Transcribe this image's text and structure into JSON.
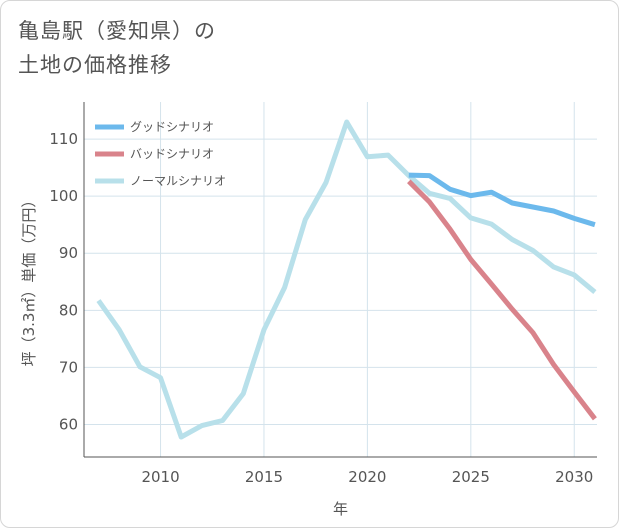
{
  "title": {
    "line1": "亀島駅（愛知県）の",
    "line2": "土地の価格推移"
  },
  "chart_data": {
    "type": "line",
    "xlabel": "年",
    "ylabel": "坪（3.3㎡）単価（万円）",
    "xlim": [
      2006.3,
      2031.1
    ],
    "ylim": [
      54.3,
      116.5
    ],
    "xticks": [
      2010,
      2015,
      2020,
      2025,
      2030
    ],
    "yticks": [
      60,
      70,
      80,
      90,
      100,
      110
    ],
    "grid": true,
    "legend_position": "top-left",
    "series": [
      {
        "name": "グッドシナリオ",
        "color": "#6cb9ec",
        "x": [
          2022,
          2023,
          2024,
          2025,
          2026,
          2027,
          2028,
          2029,
          2030,
          2031
        ],
        "values": [
          103.7,
          103.6,
          101.2,
          100.1,
          100.7,
          98.8,
          98.1,
          97.4,
          96.1,
          95.0
        ]
      },
      {
        "name": "バッドシナリオ",
        "color": "#d9838b",
        "x": [
          2022,
          2023,
          2024,
          2025,
          2026,
          2027,
          2028,
          2029,
          2030,
          2031
        ],
        "values": [
          102.6,
          99.0,
          94.2,
          88.9,
          84.6,
          80.2,
          76.1,
          70.5,
          65.7,
          61.0
        ]
      },
      {
        "name": "ノーマルシナリオ",
        "color": "#b8e0ea",
        "x": [
          2007,
          2008,
          2009,
          2010,
          2011,
          2012,
          2013,
          2014,
          2015,
          2016,
          2017,
          2018,
          2019,
          2020,
          2021,
          2022,
          2023,
          2024,
          2025,
          2026,
          2027,
          2028,
          2029,
          2030,
          2031
        ],
        "values": [
          81.7,
          76.6,
          70.1,
          68.2,
          57.8,
          59.8,
          60.7,
          65.4,
          76.6,
          84.0,
          95.9,
          102.4,
          113.0,
          106.9,
          107.2,
          103.6,
          100.5,
          99.6,
          96.2,
          95.1,
          92.4,
          90.5,
          87.6,
          86.2,
          83.2
        ]
      }
    ]
  }
}
